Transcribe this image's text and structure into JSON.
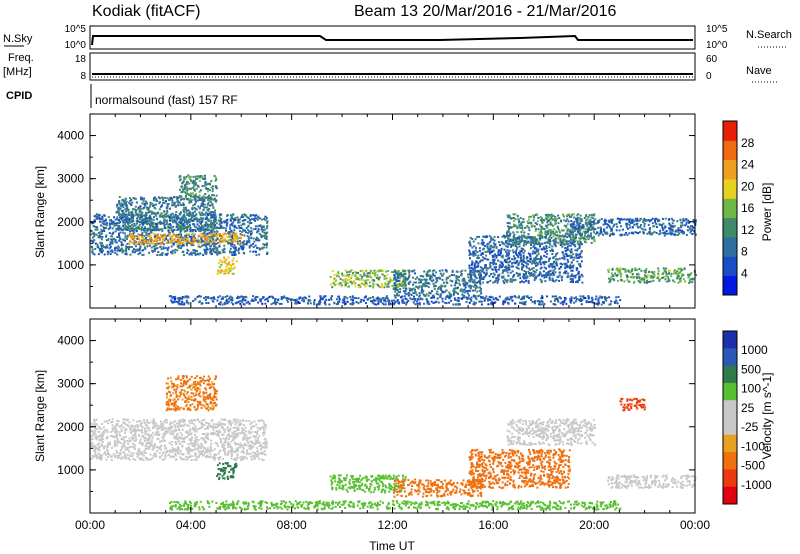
{
  "header": {
    "radar": "Kodiak (fitACF)",
    "beam_dates": "Beam 13  20/Mar/2016 - 21/Mar/2016"
  },
  "strips": {
    "nsky_label": "N.Sky",
    "nsky_ticks": [
      "10^5",
      "10^0"
    ],
    "nsearch_label": "N.Search",
    "nsearch_ticks": [
      "10^5",
      "10^0"
    ],
    "freq_label": "Freq.",
    "freq_unit": "[MHz]",
    "freq_ticks": [
      "18",
      "8"
    ],
    "nave_label": "Nave",
    "nave_ticks": [
      "60",
      "0"
    ],
    "cpid_label": "CPID",
    "cpid_value": "normalsound (fast) 157 RF"
  },
  "colors": {
    "power": [
      "#0018e0",
      "#1b4cc8",
      "#2f6ea0",
      "#3f8a6a",
      "#6fb848",
      "#e8d020",
      "#f0a020",
      "#f06a10",
      "#e62008"
    ],
    "velocity": [
      "#1b2fa8",
      "#2a58b8",
      "#2f7a48",
      "#58c030",
      "#c8c8c8",
      "#c8c8c8",
      "#e8a020",
      "#f07010",
      "#ee3810",
      "#e00010"
    ],
    "background": "#ffffff"
  },
  "chart_data": [
    {
      "type": "heatmap",
      "panel": "power",
      "ylabel": "Slant Range [km]",
      "yticks": [
        "1000",
        "2000",
        "3000",
        "4000"
      ],
      "ylim": [
        0,
        4500
      ],
      "xlim_hours": [
        0,
        24
      ],
      "cbar_label": "Power [dB]",
      "cbar_ticks": [
        "4",
        "8",
        "12",
        "16",
        "20",
        "24",
        "28"
      ],
      "clim": [
        0,
        32
      ],
      "regions": [
        {
          "t": [
            0.0,
            7.0
          ],
          "r": [
            1250,
            2200
          ],
          "value": 9
        },
        {
          "t": [
            1.5,
            6.0
          ],
          "r": [
            1500,
            1750
          ],
          "value": 22
        },
        {
          "t": [
            1.0,
            5.0
          ],
          "r": [
            1800,
            2600
          ],
          "value": 10
        },
        {
          "t": [
            3.5,
            5.0
          ],
          "r": [
            2500,
            3100
          ],
          "value": 12
        },
        {
          "t": [
            5.0,
            5.8
          ],
          "r": [
            800,
            1200
          ],
          "value": 20
        },
        {
          "t": [
            9.5,
            12.5
          ],
          "r": [
            500,
            900
          ],
          "value": 16
        },
        {
          "t": [
            12.0,
            15.5
          ],
          "r": [
            300,
            900
          ],
          "value": 10
        },
        {
          "t": [
            15.0,
            19.5
          ],
          "r": [
            600,
            1700
          ],
          "value": 8
        },
        {
          "t": [
            16.5,
            20.0
          ],
          "r": [
            1500,
            2200
          ],
          "value": 12
        },
        {
          "t": [
            19.0,
            24.0
          ],
          "r": [
            1700,
            2100
          ],
          "value": 8
        },
        {
          "t": [
            20.5,
            24.0
          ],
          "r": [
            600,
            950
          ],
          "value": 14
        },
        {
          "t": [
            3.0,
            21.0
          ],
          "r": [
            100,
            300
          ],
          "value": 7
        }
      ]
    },
    {
      "type": "heatmap",
      "panel": "velocity",
      "ylabel": "Slant Range [km]",
      "yticks": [
        "1000",
        "2000",
        "3000",
        "4000"
      ],
      "ylim": [
        0,
        4500
      ],
      "xlim_hours": [
        0,
        24
      ],
      "xlabel": "Time UT",
      "xticks": [
        "00:00",
        "04:00",
        "08:00",
        "12:00",
        "16:00",
        "20:00",
        "00:00"
      ],
      "cbar_label": "Velocity [m s^-1]",
      "cbar_ticks": [
        "1000",
        "500",
        "100",
        "25",
        "-25",
        "-100",
        "-500",
        "-1000"
      ],
      "regions": [
        {
          "t": [
            0.0,
            7.0
          ],
          "r": [
            1250,
            2200
          ],
          "value": 0
        },
        {
          "t": [
            3.0,
            5.0
          ],
          "r": [
            2400,
            3200
          ],
          "value": -120
        },
        {
          "t": [
            5.0,
            5.8
          ],
          "r": [
            800,
            1200
          ],
          "value": 150
        },
        {
          "t": [
            9.5,
            12.5
          ],
          "r": [
            500,
            900
          ],
          "value": 60
        },
        {
          "t": [
            12.0,
            15.5
          ],
          "r": [
            400,
            800
          ],
          "value": -300
        },
        {
          "t": [
            15.0,
            19.0
          ],
          "r": [
            600,
            1500
          ],
          "value": -250
        },
        {
          "t": [
            16.5,
            20.0
          ],
          "r": [
            1600,
            2200
          ],
          "value": 0
        },
        {
          "t": [
            20.5,
            24.0
          ],
          "r": [
            600,
            900
          ],
          "value": 0
        },
        {
          "t": [
            21.0,
            22.0
          ],
          "r": [
            2400,
            2700
          ],
          "value": -600
        },
        {
          "t": [
            3.0,
            21.0
          ],
          "r": [
            100,
            300
          ],
          "value": 40
        }
      ]
    }
  ]
}
